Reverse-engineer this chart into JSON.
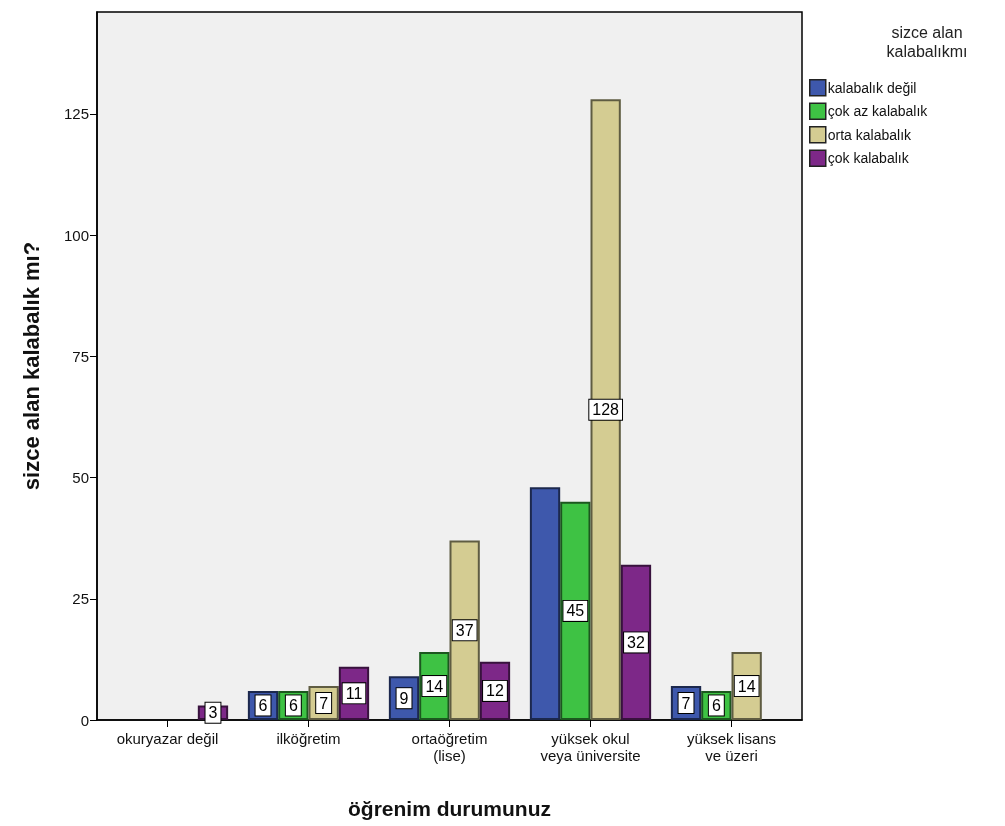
{
  "chart_data": {
    "type": "bar",
    "xlabel": "öğrenim durumunuz",
    "ylabel": "sizce alan kalabalık mı?",
    "legend_title": "sizce alan\nkalabalıkmı",
    "categories": [
      "okuryazar değil",
      "ilköğretim",
      "ortaöğretim\n(lise)",
      "yüksek okul\nveya üniversite",
      "yüksek lisans\nve üzeri"
    ],
    "series": [
      {
        "name": "kalabalık değil",
        "color": "#3e58ac",
        "values": [
          null,
          6,
          9,
          48,
          7
        ],
        "value_labels": [
          null,
          "6",
          "9",
          null,
          "7"
        ]
      },
      {
        "name": "çok az kalabalık",
        "color": "#3ec244",
        "values": [
          null,
          6,
          14,
          45,
          6
        ],
        "value_labels": [
          null,
          "6",
          "14",
          "45",
          "6"
        ]
      },
      {
        "name": "orta kalabalık",
        "color": "#d4cc92",
        "values": [
          null,
          7,
          37,
          128,
          14
        ],
        "value_labels": [
          null,
          "7",
          "37",
          "128",
          "14"
        ]
      },
      {
        "name": "çok kalabalık",
        "color": "#7d2888",
        "values": [
          3,
          11,
          12,
          32,
          null
        ],
        "value_labels": [
          "3",
          "11",
          "12",
          "32",
          null
        ]
      }
    ],
    "ylim": [
      0,
      146
    ],
    "yticks": [
      0,
      25,
      50,
      75,
      100,
      125
    ],
    "grid": false,
    "legend": "top right"
  }
}
